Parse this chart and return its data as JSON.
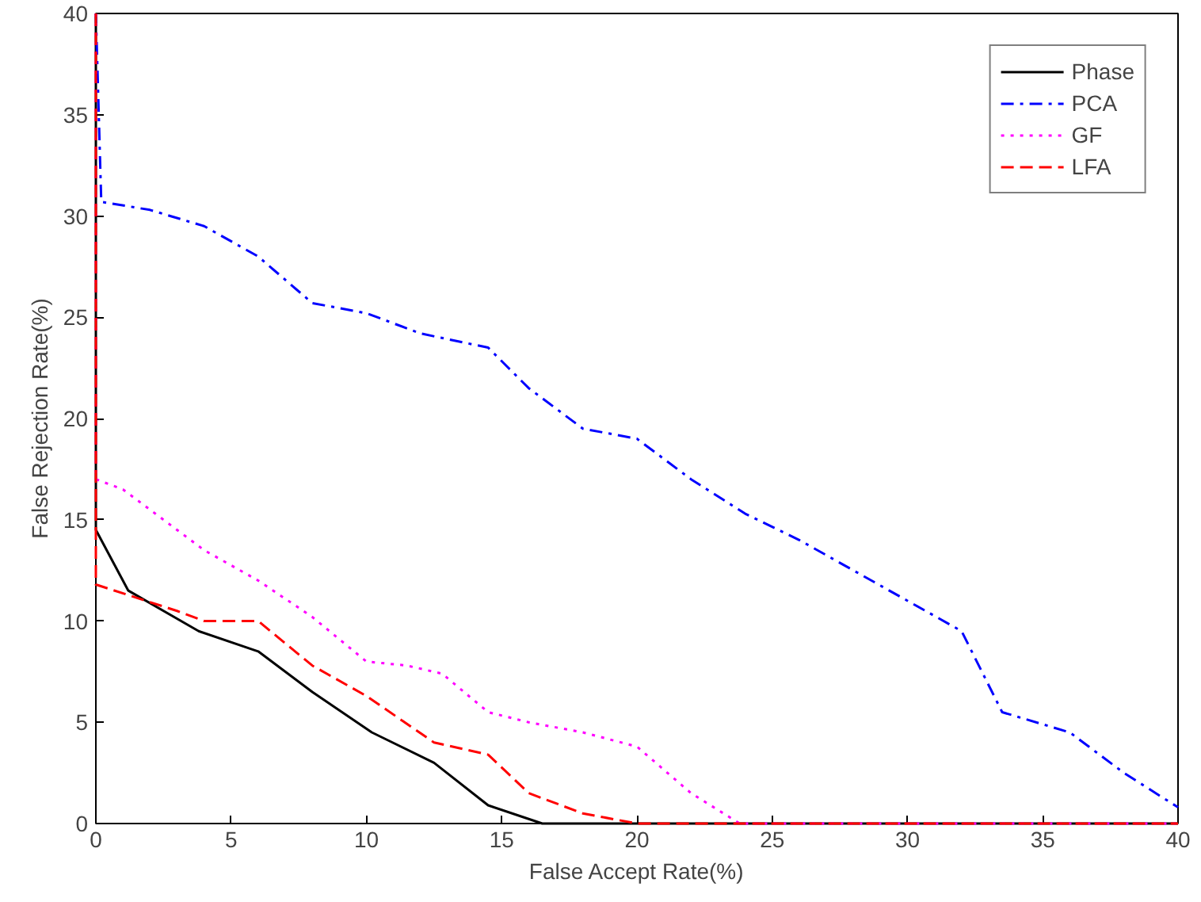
{
  "chart_data": {
    "type": "line",
    "xlabel": "False Accept Rate(%)",
    "ylabel": "False Rejection Rate(%)",
    "xlim": [
      0,
      40
    ],
    "ylim": [
      0,
      40
    ],
    "xticks": [
      0,
      5,
      10,
      15,
      20,
      25,
      30,
      35,
      40
    ],
    "yticks": [
      0,
      5,
      10,
      15,
      20,
      25,
      30,
      35,
      40
    ],
    "grid": false,
    "legend": "top right",
    "series": [
      {
        "name": "Phase",
        "color": "#000000",
        "line_style": "solid",
        "x": [
          0,
          0,
          1.2,
          3.8,
          6,
          8,
          10.2,
          12.5,
          14.5,
          16.5,
          40
        ],
        "values": [
          40,
          14.5,
          11.5,
          9.5,
          8.5,
          6.5,
          4.5,
          3,
          0.9,
          0,
          0
        ]
      },
      {
        "name": "PCA",
        "color": "#0000ff",
        "line_style": "dashdot",
        "x": [
          0,
          0.2,
          2,
          4,
          6,
          8,
          10,
          12,
          14.5,
          16,
          18,
          20,
          22,
          24,
          26,
          28,
          30,
          32,
          33.5,
          36,
          38,
          40
        ],
        "values": [
          40,
          30.7,
          30.3,
          29.5,
          28,
          25.7,
          25.2,
          24.2,
          23.5,
          21.5,
          19.5,
          19,
          17,
          15.3,
          14,
          12.5,
          11,
          9.5,
          5.5,
          4.5,
          2.5,
          0.8
        ]
      },
      {
        "name": "GF",
        "color": "#ff00ff",
        "line_style": "dotted",
        "x": [
          0,
          0,
          1,
          4,
          6,
          8,
          10,
          11.5,
          12.8,
          14.5,
          16,
          18,
          20,
          22,
          23.8,
          40
        ],
        "values": [
          40,
          17,
          16.5,
          13.5,
          12,
          10.2,
          8,
          7.8,
          7.4,
          5.5,
          5,
          4.5,
          3.8,
          1.5,
          0,
          0
        ]
      },
      {
        "name": "LFA",
        "color": "#ff0000",
        "line_style": "dashed",
        "x": [
          0,
          0,
          3,
          4,
          6,
          8,
          10,
          12.5,
          14.5,
          16,
          18,
          20,
          40
        ],
        "values": [
          40,
          11.8,
          10.5,
          10,
          10,
          7.8,
          6.3,
          4,
          3.4,
          1.5,
          0.5,
          0,
          0
        ]
      }
    ]
  }
}
